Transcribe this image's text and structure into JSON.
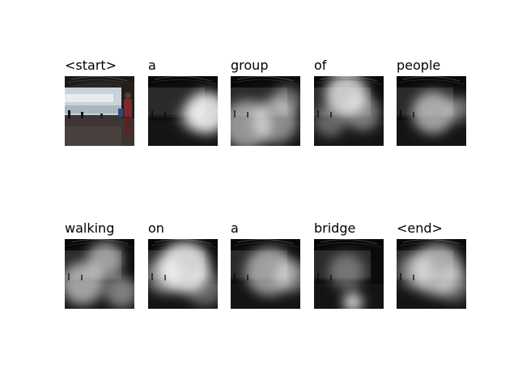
{
  "figure": {
    "tokens": [
      {
        "word": "<start>",
        "kind": "original"
      },
      {
        "word": "a",
        "kind": "attention",
        "focus": "right side, person near pillar"
      },
      {
        "word": "group",
        "kind": "attention",
        "focus": "broad, lower-left path and people"
      },
      {
        "word": "of",
        "kind": "attention",
        "focus": "upper-center river area"
      },
      {
        "word": "people",
        "kind": "attention",
        "focus": "center band along path"
      },
      {
        "word": "walking",
        "kind": "attention",
        "focus": "left and center broad"
      },
      {
        "word": "on",
        "kind": "attention",
        "focus": "wide bright horizontal band"
      },
      {
        "word": "a",
        "kind": "attention",
        "focus": "center-right band"
      },
      {
        "word": "bridge",
        "kind": "attention",
        "focus": "lower center spot"
      },
      {
        "word": "<end>",
        "kind": "attention",
        "focus": "horizontal band across image"
      }
    ]
  }
}
